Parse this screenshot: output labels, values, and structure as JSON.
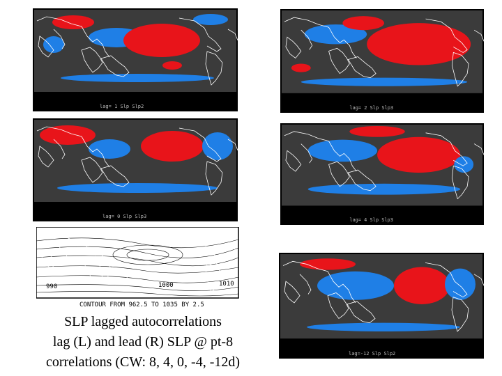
{
  "panels": [
    {
      "caption": "lag= 1 Slp Slp2"
    },
    {
      "caption": "lag= 2 Slp Slp3"
    },
    {
      "caption": "lag= 0 Slp Slp3"
    },
    {
      "caption": "lag= 4 Slp Slp3"
    },
    {
      "caption": "lag=-12 Slp Slp2"
    }
  ],
  "contour_map": {
    "caption": "CONTOUR FROM 962.5 TO 1035 BY 2.5",
    "labels": [
      "1000",
      "1010",
      "990"
    ]
  },
  "caption_lines": [
    "SLP lagged autocorrelations",
    "lag (L) and lead (R) SLP @ pt-8",
    "correlations (CW: 8, 4, 0, -4, -12d)"
  ]
}
